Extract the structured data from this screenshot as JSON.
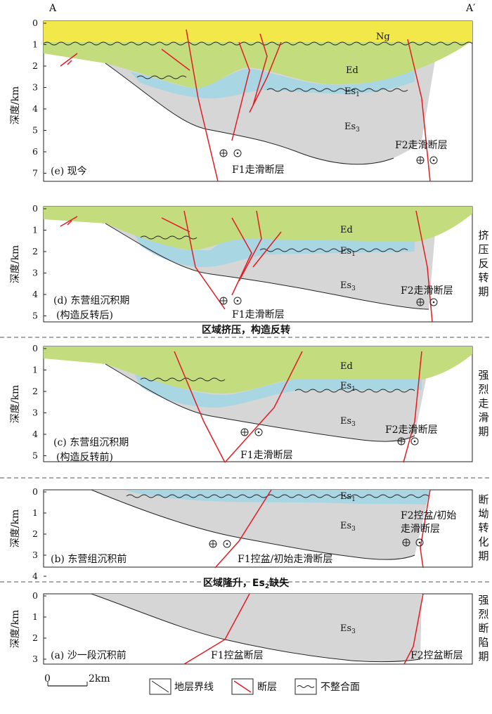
{
  "section": {
    "start": "A",
    "end": "A′"
  },
  "axis_label": "深度/km",
  "panels": [
    {
      "id": "e",
      "ticks": [
        "0",
        "1",
        "2",
        "3",
        "4",
        "5",
        "6",
        "7"
      ],
      "title1": "(e) 现今",
      "title2": "",
      "units": {
        "ng": "Ng",
        "ed": "Ed",
        "es1": "Es",
        "es1_sub": "1",
        "es3": "Es",
        "es3_sub": "3"
      },
      "f1": "F1走滑断层",
      "f2": "F2走滑断层",
      "side": ""
    },
    {
      "id": "d",
      "ticks": [
        "0",
        "1",
        "2",
        "3",
        "4",
        "5"
      ],
      "title1": "(d) 东营组沉积期",
      "title2": "(构造反转后)",
      "units": {
        "ed": "Ed",
        "es1": "Es",
        "es1_sub": "1",
        "es3": "Es",
        "es3_sub": "3"
      },
      "f1": "F1走滑断层",
      "f2": "F2走滑断层",
      "side": "挤压反转期"
    },
    {
      "id": "c",
      "ticks": [
        "0",
        "1",
        "2",
        "3",
        "4",
        "5"
      ],
      "title1": "(c) 东营组沉积期",
      "title2": "(构造反转前)",
      "units": {
        "ed": "Ed",
        "es1": "Es",
        "es1_sub": "1",
        "es3": "Es",
        "es3_sub": "3"
      },
      "f1": "F1走滑断层",
      "f2": "F2走滑断层",
      "side": "强烈走滑期"
    },
    {
      "id": "b",
      "ticks": [
        "0",
        "1",
        "2",
        "3",
        "4"
      ],
      "title1": "(b) 东营组沉积前",
      "title2": "",
      "units": {
        "es1": "Es",
        "es1_sub": "1",
        "es3": "Es",
        "es3_sub": "3"
      },
      "f1": "F1控盆/初始走滑断层",
      "f2a": "F2控盆/初始",
      "f2b": "走滑断层",
      "side": "断坳转化期"
    },
    {
      "id": "a",
      "ticks": [
        "0",
        "1",
        "2",
        "3"
      ],
      "title1": "(a) 沙一段沉积前",
      "title2": "",
      "units": {
        "es3": "Es",
        "es3_sub": "3"
      },
      "f1": "F1控盆断层",
      "f2": "F2控盆断层",
      "side": "强烈断陷期"
    }
  ],
  "bands": {
    "top": "区域挤压，构造反转",
    "bottom_pre": "区域隆升，Es",
    "bottom_sub": "2",
    "bottom_post": "缺失"
  },
  "scale": {
    "zero": "0",
    "len": "2km"
  },
  "legend": {
    "boundary": "地层界线",
    "fault": "断层",
    "unconformity": "不整合面"
  },
  "colors": {
    "ng": "#f2e84a",
    "ed": "#c3dc7e",
    "es1": "#a9d6e3",
    "es3": "#d6d6d6",
    "fault": "#e31b23"
  }
}
